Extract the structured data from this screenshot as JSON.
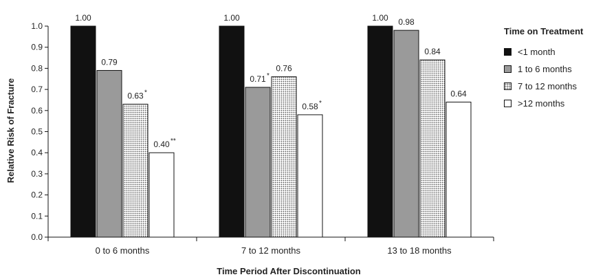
{
  "chart_data": {
    "type": "bar",
    "title": "",
    "xlabel": "Time Period After Discontinuation",
    "ylabel": "Relative Risk of Fracture",
    "ylim": [
      0,
      1.0
    ],
    "yticks": [
      "0.0",
      "0.1",
      "0.2",
      "0.3",
      "0.4",
      "0.5",
      "0.6",
      "0.7",
      "0.8",
      "0.9",
      "1.0"
    ],
    "categories": [
      "0 to 6 months",
      "7 to 12 months",
      "13 to 18 months"
    ],
    "legend_title": "Time on Treatment",
    "legend_position": "right",
    "grid": false,
    "series": [
      {
        "name": "<1 month",
        "color": "#111111",
        "pattern": "solid",
        "values": [
          1.0,
          1.0,
          1.0
        ],
        "labels": [
          "1.00",
          "1.00",
          "1.00"
        ],
        "marks": [
          "",
          "",
          ""
        ]
      },
      {
        "name": "1 to 6 months",
        "color": "#9a9a9a",
        "pattern": "solid",
        "values": [
          0.79,
          0.71,
          0.98
        ],
        "labels": [
          "0.79",
          "0.71",
          "0.98"
        ],
        "marks": [
          "",
          "*",
          ""
        ]
      },
      {
        "name": "7 to 12 months",
        "color": "#cfcfcf",
        "pattern": "dotted",
        "values": [
          0.63,
          0.76,
          0.84
        ],
        "labels": [
          "0.63",
          "0.76",
          "0.84"
        ],
        "marks": [
          "*",
          "",
          ""
        ]
      },
      {
        "name": ">12 months",
        "color": "#ffffff",
        "pattern": "solid",
        "values": [
          0.4,
          0.58,
          0.64
        ],
        "labels": [
          "0.40",
          "0.58",
          "0.64"
        ],
        "marks": [
          "**",
          "*",
          ""
        ]
      }
    ]
  }
}
